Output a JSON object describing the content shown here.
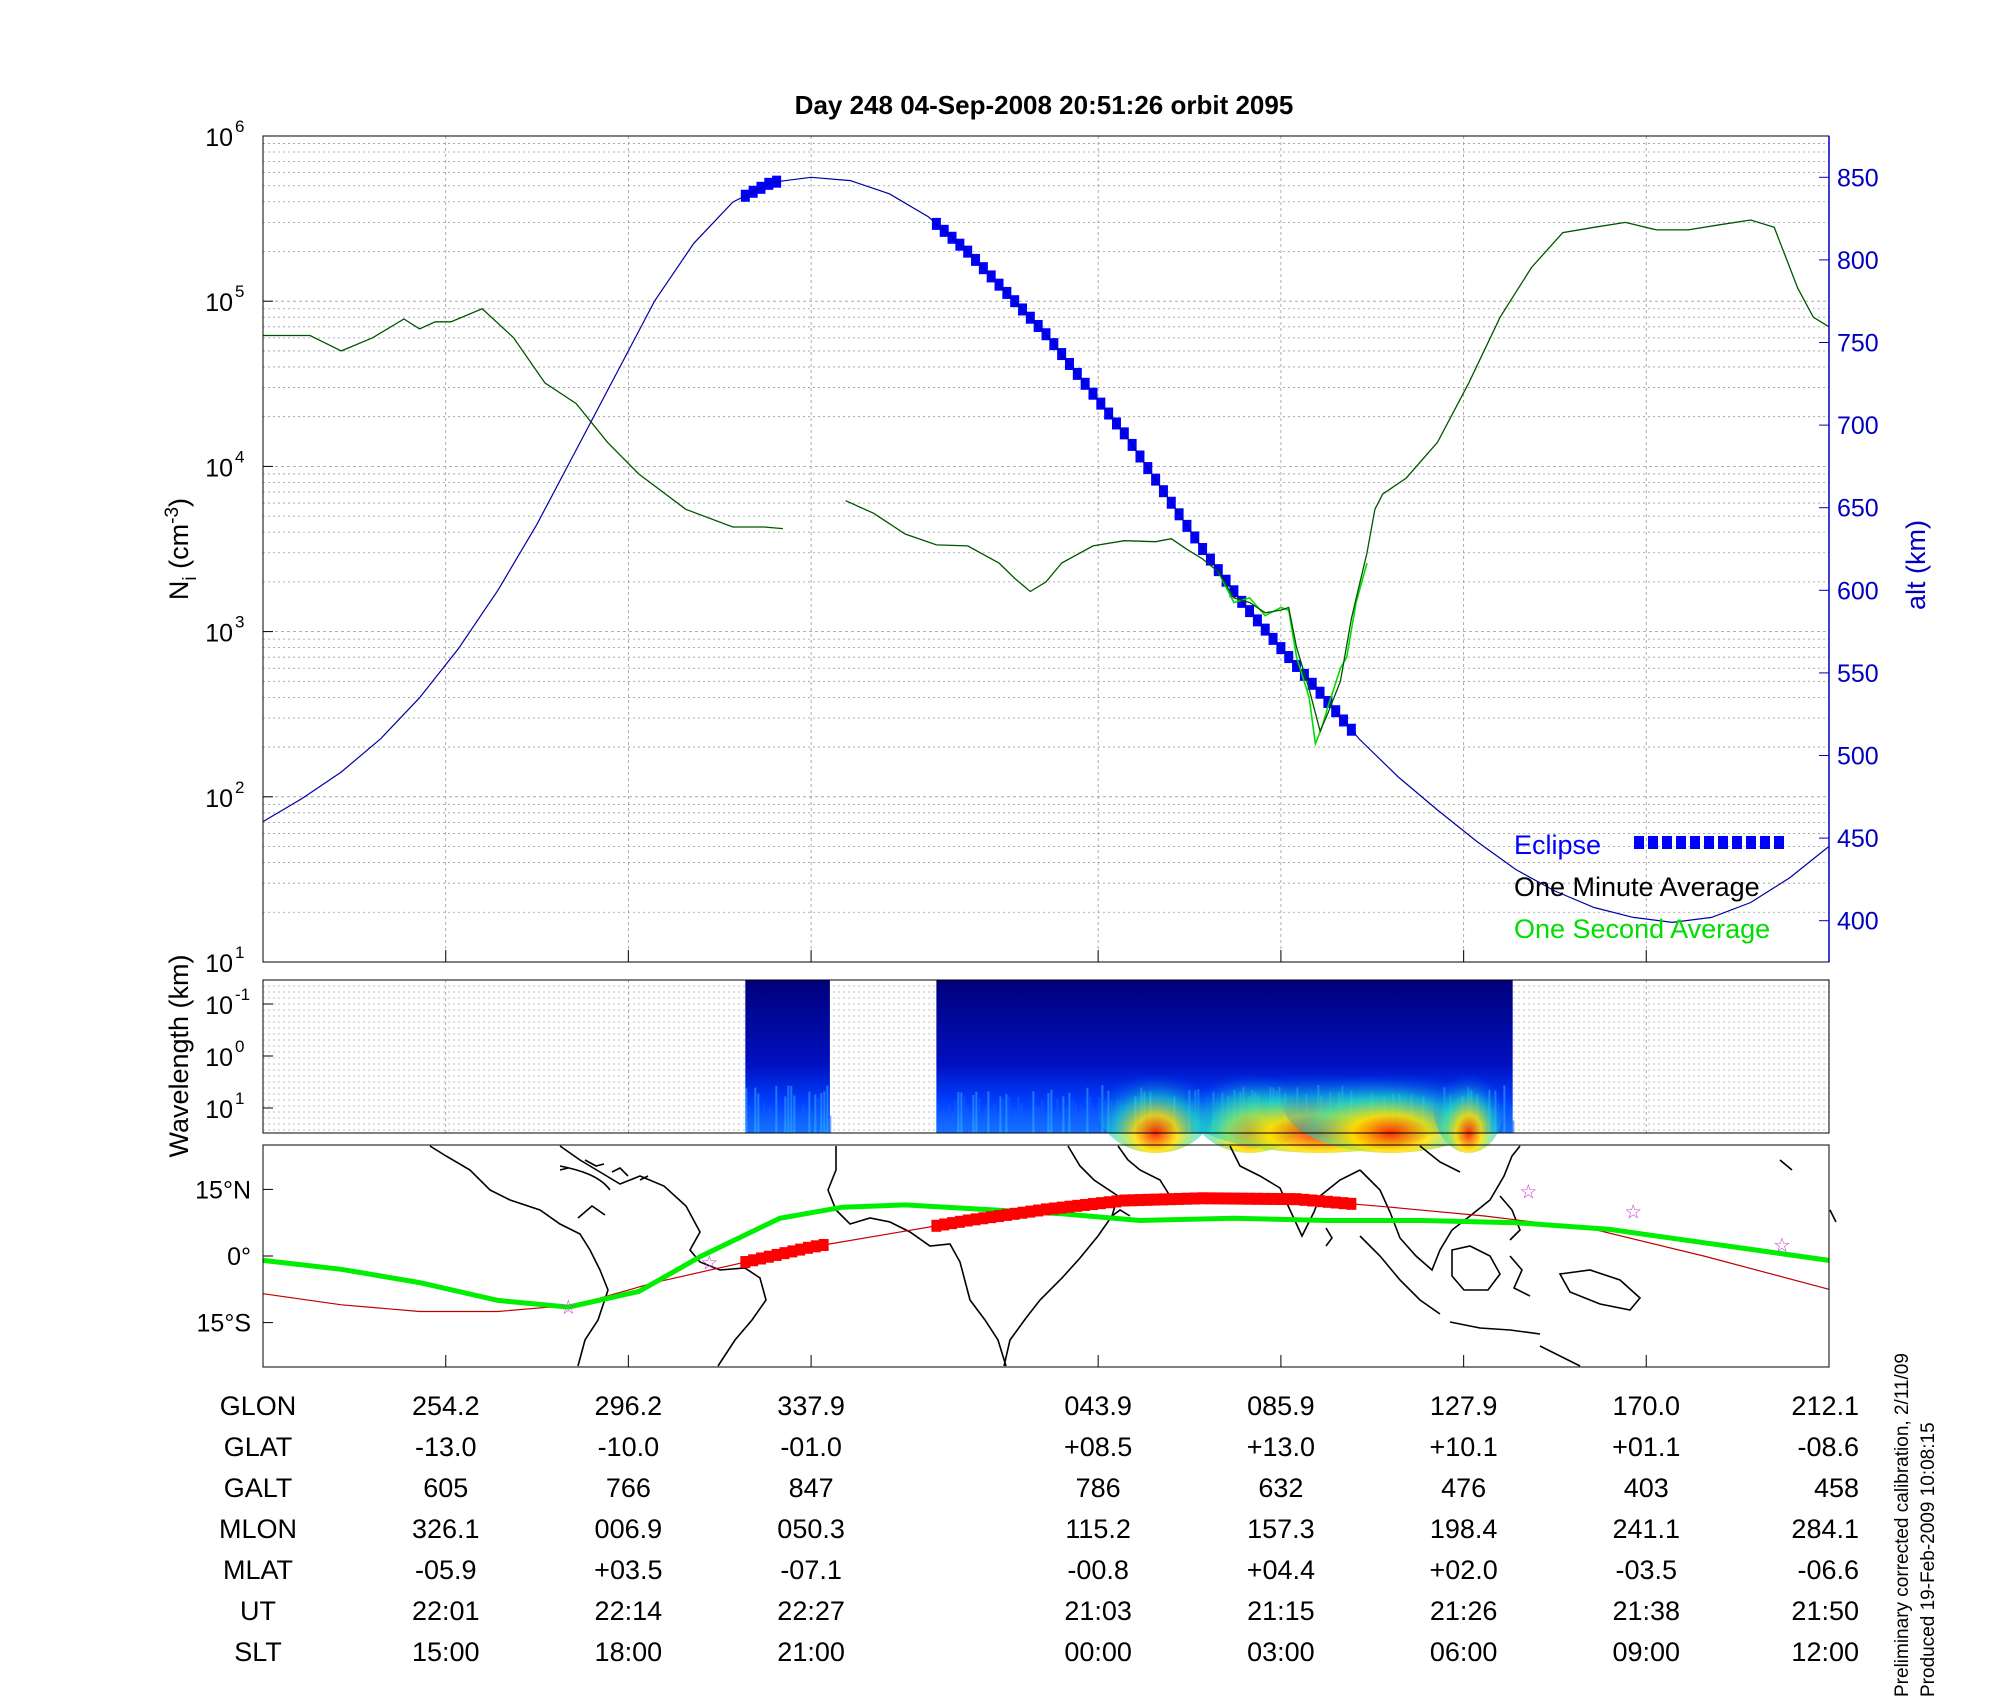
{
  "title": "Day 248  04-Sep-2008 20:51:26   orbit 2095",
  "footer": {
    "line1": "Preliminary corrected calibration, 2/11/09",
    "line2": "Produced 19-Feb-2009 10:08:15"
  },
  "colors": {
    "altitude": "#0000a0",
    "eclipse": "#0000ff",
    "one_minute": "#005500",
    "one_second": "#00dd00",
    "map_track": "#00ee00",
    "map_eclipse": "#ff0000",
    "map_trace": "#c00000",
    "stars": "#cc44cc",
    "right_axis": "#0000c0"
  },
  "chart_data": [
    {
      "type": "line",
      "panel": "density",
      "ylabel": "N",
      "ylabel_sub": "i",
      "ylabel_unit": " (cm",
      "ylabel_exp": "-3",
      "ylabel_close": ")",
      "y_scale": "log",
      "ylim": [
        10,
        1000000
      ],
      "y_ticks": [
        {
          "base": "10",
          "exp": "1"
        },
        {
          "base": "10",
          "exp": "2"
        },
        {
          "base": "10",
          "exp": "3"
        },
        {
          "base": "10",
          "exp": "4"
        },
        {
          "base": "10",
          "exp": "5"
        },
        {
          "base": "10",
          "exp": "6"
        }
      ],
      "y2label": "alt (km)",
      "y2lim": [
        375,
        875
      ],
      "y2_ticks": [
        "400",
        "450",
        "500",
        "550",
        "600",
        "650",
        "700",
        "750",
        "800",
        "850"
      ],
      "grid": true,
      "legend_position": "bottom-right",
      "legend": [
        "Eclipse",
        "One Minute Average",
        "One Second Average"
      ],
      "series": [
        {
          "name": "One Minute Average",
          "segments": [
            [
              [
                0,
                62000
              ],
              [
                3,
                62000
              ],
              [
                5,
                50000
              ],
              [
                7,
                60000
              ],
              [
                9,
                78000
              ],
              [
                10,
                68000
              ],
              [
                11,
                75000
              ],
              [
                12,
                75000
              ],
              [
                14,
                90000
              ],
              [
                16,
                60000
              ],
              [
                18,
                32000
              ],
              [
                20,
                24000
              ],
              [
                22,
                14000
              ],
              [
                24,
                9000
              ],
              [
                27,
                5500
              ],
              [
                30,
                4300
              ],
              [
                32,
                4300
              ],
              [
                33.2,
                4200
              ]
            ],
            [
              [
                37.2,
                6200
              ],
              [
                39,
                5200
              ],
              [
                41,
                3900
              ],
              [
                43,
                3350
              ],
              [
                45,
                3300
              ],
              [
                47,
                2600
              ],
              [
                48,
                2100
              ],
              [
                49,
                1750
              ],
              [
                50,
                2000
              ],
              [
                51,
                2600
              ],
              [
                53,
                3300
              ],
              [
                55,
                3550
              ],
              [
                57,
                3500
              ],
              [
                58,
                3650
              ],
              [
                59,
                3150
              ],
              [
                60,
                2750
              ],
              [
                61,
                2300
              ],
              [
                62,
                1600
              ],
              [
                63,
                1500
              ],
              [
                64,
                1300
              ],
              [
                65,
                1350
              ],
              [
                65.5,
                1400
              ],
              [
                66,
                800
              ],
              [
                66.8,
                450
              ],
              [
                67.5,
                250
              ],
              [
                68,
                320
              ],
              [
                68.8,
                500
              ],
              [
                69.5,
                1200
              ],
              [
                70.5,
                3000
              ],
              [
                71,
                5500
              ],
              [
                71.5,
                6800
              ],
              [
                73,
                8500
              ],
              [
                75,
                14000
              ],
              [
                77,
                32000
              ],
              [
                79,
                80000
              ],
              [
                81,
                160000
              ],
              [
                83,
                260000
              ],
              [
                85,
                280000
              ],
              [
                87,
                300000
              ],
              [
                89,
                270000
              ],
              [
                91,
                270000
              ],
              [
                93,
                290000
              ],
              [
                95,
                310000
              ],
              [
                96.5,
                280000
              ],
              [
                98,
                120000
              ],
              [
                99,
                80000
              ],
              [
                100,
                70000
              ]
            ]
          ]
        },
        {
          "name": "One Second Average",
          "segments": [
            [
              [
                61,
                2300
              ],
              [
                62,
                1500
              ],
              [
                63,
                1600
              ],
              [
                64,
                1250
              ],
              [
                65,
                1400
              ],
              [
                65.5,
                1350
              ],
              [
                66,
                700
              ],
              [
                66.8,
                400
              ],
              [
                67.2,
                210
              ],
              [
                67.6,
                260
              ],
              [
                68,
                350
              ],
              [
                68.8,
                600
              ],
              [
                69.2,
                700
              ],
              [
                69.8,
                1500
              ],
              [
                70.5,
                2600
              ]
            ]
          ]
        },
        {
          "name": "Altitude",
          "axis": "y2",
          "points": [
            [
              0,
              460
            ],
            [
              2.5,
              474
            ],
            [
              5,
              490
            ],
            [
              7.5,
              510
            ],
            [
              10,
              535
            ],
            [
              12.5,
              565
            ],
            [
              15,
              600
            ],
            [
              17.5,
              640
            ],
            [
              20,
              685
            ],
            [
              22.5,
              730
            ],
            [
              25,
              775
            ],
            [
              27.5,
              810
            ],
            [
              30,
              835
            ],
            [
              32.5,
              847
            ],
            [
              35,
              850
            ],
            [
              37.5,
              848
            ],
            [
              40,
              840
            ],
            [
              42.5,
              826
            ],
            [
              45,
              805
            ],
            [
              47.5,
              780
            ],
            [
              50,
              755
            ],
            [
              52.5,
              725
            ],
            [
              55,
              695
            ],
            [
              57.5,
              660
            ],
            [
              60,
              625
            ],
            [
              62.5,
              593
            ],
            [
              65,
              565
            ],
            [
              67.5,
              538
            ],
            [
              70,
              510
            ],
            [
              72.5,
              487
            ],
            [
              75,
              467
            ],
            [
              77.5,
              448
            ],
            [
              80,
              431
            ],
            [
              82.5,
              418
            ],
            [
              85,
              408
            ],
            [
              87.5,
              402
            ],
            [
              90,
              399
            ],
            [
              92.5,
              402
            ],
            [
              95,
              411
            ],
            [
              97.5,
              426
            ],
            [
              100,
              445
            ]
          ]
        },
        {
          "name": "Eclipse",
          "axis": "y2",
          "segments": [
            [
              30.8,
              33.0
            ],
            [
              43.0,
              69.8
            ]
          ]
        }
      ]
    },
    {
      "type": "heatmap",
      "panel": "spectrogram",
      "ylabel": "Wavelength (km)",
      "y_ticks": [
        {
          "base": "10",
          "exp": "-1"
        },
        {
          "base": "10",
          "exp": "0"
        },
        {
          "base": "10",
          "exp": "1"
        }
      ],
      "blocks": [
        [
          30.8,
          36.2
        ],
        [
          43.0,
          79.8
        ]
      ],
      "hot_spots": [
        [
          63,
          1.0
        ],
        [
          67.5,
          2.4
        ],
        [
          72,
          1.8
        ],
        [
          57,
          1.0
        ],
        [
          77,
          0.6
        ]
      ]
    },
    {
      "type": "map",
      "panel": "ground-track",
      "lon_ticks": [
        "",
        "",
        "",
        "",
        "",
        "",
        "",
        "",
        ""
      ],
      "lat_ticks": [
        "15°N",
        "0°",
        "15°S"
      ],
      "lat_tick_values": [
        15,
        0,
        -15
      ],
      "ylim": [
        -25,
        25
      ],
      "x_span": [
        0,
        100
      ],
      "track": [
        [
          0,
          -1
        ],
        [
          5,
          -3
        ],
        [
          10,
          -6
        ],
        [
          15,
          -10
        ],
        [
          19.5,
          -11.5
        ],
        [
          24,
          -8
        ],
        [
          28,
          0
        ],
        [
          33,
          8.5
        ],
        [
          37,
          11
        ],
        [
          41,
          11.5
        ],
        [
          46,
          10.5
        ],
        [
          51,
          9.5
        ],
        [
          56,
          8
        ],
        [
          62,
          8.5
        ],
        [
          68,
          8
        ],
        [
          74,
          8
        ],
        [
          80,
          7.5
        ],
        [
          86,
          6
        ],
        [
          92,
          3
        ],
        [
          100,
          -1
        ]
      ],
      "trace": [
        [
          0,
          -8.5
        ],
        [
          5,
          -11
        ],
        [
          10,
          -12.5
        ],
        [
          15,
          -12.5
        ],
        [
          20,
          -11
        ],
        [
          25,
          -6
        ],
        [
          30,
          -2
        ],
        [
          35,
          2
        ],
        [
          40,
          5
        ],
        [
          45,
          8
        ],
        [
          50,
          10.5
        ],
        [
          55,
          12.5
        ],
        [
          60,
          13
        ],
        [
          66,
          12.8
        ],
        [
          72,
          11
        ],
        [
          78,
          9
        ],
        [
          85,
          6
        ],
        [
          92,
          0
        ],
        [
          100,
          -7.5
        ]
      ],
      "eclipse_segments": [
        [
          30.8,
          35.8
        ],
        [
          43.0,
          69.8
        ]
      ],
      "stars": [
        [
          19.5,
          -11.5
        ],
        [
          28.5,
          -1.5
        ],
        [
          80.8,
          14.5
        ],
        [
          87.5,
          10
        ],
        [
          97,
          2.5
        ]
      ]
    }
  ],
  "ephemeris": {
    "rows": [
      {
        "label": "GLON",
        "values": [
          "254.2",
          "296.2",
          "337.9",
          "043.9",
          "085.9",
          "127.9",
          "170.0",
          "212.1"
        ]
      },
      {
        "label": "GLAT",
        "values": [
          "-13.0",
          "-10.0",
          "-01.0",
          "+08.5",
          "+13.0",
          "+10.1",
          "+01.1",
          "-08.6"
        ]
      },
      {
        "label": "GALT",
        "values": [
          "605",
          "766",
          "847",
          "786",
          "632",
          "476",
          "403",
          "458"
        ]
      },
      {
        "label": "MLON",
        "values": [
          "326.1",
          "006.9",
          "050.3",
          "115.2",
          "157.3",
          "198.4",
          "241.1",
          "284.1"
        ]
      },
      {
        "label": "MLAT",
        "values": [
          "-05.9",
          "+03.5",
          "-07.1",
          "-00.8",
          "+04.4",
          "+02.0",
          "-03.5",
          "-06.6"
        ]
      },
      {
        "label": "UT",
        "values": [
          "22:01",
          "22:14",
          "22:27",
          "21:03",
          "21:15",
          "21:26",
          "21:38",
          "21:50"
        ]
      },
      {
        "label": "SLT",
        "values": [
          "15:00",
          "18:00",
          "21:00",
          "00:00",
          "03:00",
          "06:00",
          "09:00",
          "12:00"
        ]
      }
    ],
    "tick_positions": [
      11.67,
      23.33,
      35.0,
      53.33,
      65.0,
      76.67,
      88.33,
      100.0
    ]
  }
}
